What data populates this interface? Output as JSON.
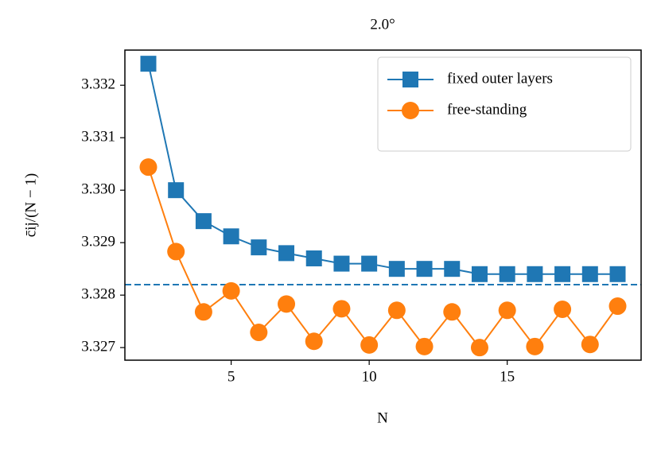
{
  "chart_data": {
    "type": "line",
    "title": "2.0°",
    "xlabel": "N",
    "ylabel": "c̄ij/(N − 1)",
    "x": [
      2,
      3,
      4,
      5,
      6,
      7,
      8,
      9,
      10,
      11,
      12,
      13,
      14,
      15,
      16,
      17,
      18,
      19
    ],
    "series": [
      {
        "name": "fixed outer layers",
        "color": "#1f77b4",
        "marker": "square",
        "values": [
          3.33241,
          3.33,
          3.32941,
          3.32912,
          3.32891,
          3.3288,
          3.3287,
          3.3286,
          3.3286,
          3.3285,
          3.3285,
          3.3285,
          3.3284,
          3.3284,
          3.3284,
          3.3284,
          3.3284,
          3.3284
        ]
      },
      {
        "name": "free-standing",
        "color": "#ff7f0e",
        "marker": "circle",
        "values": [
          3.33044,
          3.32883,
          3.32768,
          3.32808,
          3.32729,
          3.32783,
          3.32712,
          3.32774,
          3.32705,
          3.32771,
          3.32702,
          3.32768,
          3.327,
          3.32771,
          3.32702,
          3.32773,
          3.32706,
          3.32779
        ]
      }
    ],
    "hline": {
      "value": 3.3282,
      "color": "#1f77b4",
      "dashed": true
    },
    "xlim": [
      1.15,
      19.85
    ],
    "xticks": [
      5,
      10,
      15
    ],
    "ylim": [
      3.32676,
      3.33267
    ],
    "yticks": [
      3.327,
      3.328,
      3.329,
      {
        "value": 3.33,
        "label": "3.330"
      },
      3.331,
      3.332
    ],
    "grid": false,
    "legend": "upper right"
  }
}
